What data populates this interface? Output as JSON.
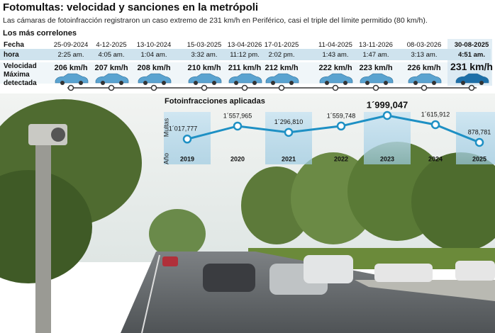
{
  "header": {
    "title": "Fotomultas: velocidad y sanciones en la metrópoli",
    "subtitle": "Las cámaras de fotoinfracción registraron un caso extremo de 231 km/h en Periférico, casi el triple del límite permitido (80 km/h)."
  },
  "table": {
    "title": "Los más correlones",
    "row_labels": [
      "Fecha",
      "hora",
      "Velocidad Máxima detectada"
    ],
    "columns": [
      [
        "25-09-2024",
        "2:25 am.",
        "206 km/h"
      ],
      [
        "4-12-2025",
        "4:05 am.",
        "207 km/h"
      ],
      [
        "13-10-2024",
        "1:04 am.",
        "208 km/h"
      ],
      [
        "15-03-2025",
        "3:32 am.",
        "210 km/h"
      ],
      [
        "13-04-2026",
        "11:12 pm.",
        "211 km/h"
      ],
      [
        "17-01-2025",
        "2:02 pm.",
        "212 km/h"
      ],
      [
        "11-04-2025",
        "1:43 am.",
        "222 km/h"
      ],
      [
        "13-11-2026",
        "1:47 am.",
        "223 km/h"
      ],
      [
        "08-03-2026",
        "3:13 am.",
        "226 km/h"
      ],
      [
        "30-08-2025",
        "4:51 am.",
        "231 km/h"
      ]
    ]
  },
  "chart_data": {
    "type": "line",
    "title": "Fotoinfracciones aplicadas",
    "y_label": "Multas",
    "x_label": "Año",
    "categories": [
      "2019",
      "2020",
      "2021",
      "2022",
      "2023",
      "2024",
      "2025"
    ],
    "values": [
      1017777,
      1557965,
      1296810,
      1559748,
      1999047,
      1615912,
      878781
    ],
    "value_labels": [
      "1´017,777",
      "1´557,965",
      "1´296,810",
      "1´559,748",
      "1´999,047",
      "1´615,912",
      "878,781"
    ],
    "color": "#1e90c4"
  }
}
